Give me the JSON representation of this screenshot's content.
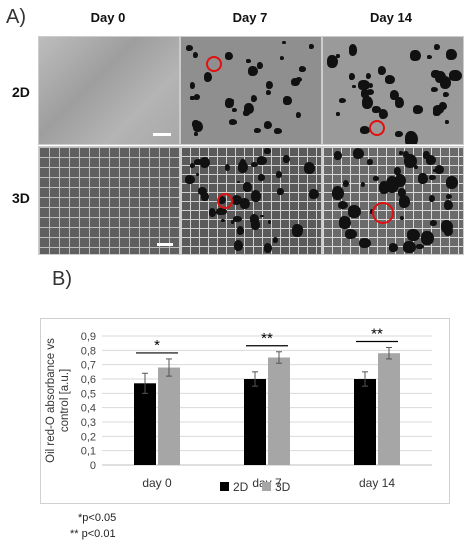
{
  "panel_a": {
    "label": "A)",
    "columns": [
      "Day 0",
      "Day 7",
      "Day 14"
    ],
    "rows": [
      "2D",
      "3D"
    ]
  },
  "panel_b": {
    "label": "B)"
  },
  "chart_data": {
    "type": "bar",
    "categories": [
      "day 0",
      "day 7",
      "day 14"
    ],
    "series": [
      {
        "name": "2D",
        "values": [
          0.57,
          0.6,
          0.6
        ],
        "errors": [
          0.07,
          0.05,
          0.05
        ],
        "color": "#000000"
      },
      {
        "name": "3D",
        "values": [
          0.68,
          0.75,
          0.78
        ],
        "errors": [
          0.06,
          0.04,
          0.04
        ],
        "color": "#a6a6a6"
      }
    ],
    "ylabel": "Oil red-O absorbance vs control [a.u.]",
    "ylim": [
      0,
      0.9
    ],
    "yticks": [
      "0",
      "0,1",
      "0,2",
      "0,3",
      "0,4",
      "0,5",
      "0,6",
      "0,7",
      "0,8",
      "0,9"
    ],
    "grid": true,
    "legend_position": "bottom",
    "significance": [
      "*",
      "**",
      "**"
    ]
  },
  "footnotes": [
    "*p<0.05",
    "** p<0.01"
  ]
}
